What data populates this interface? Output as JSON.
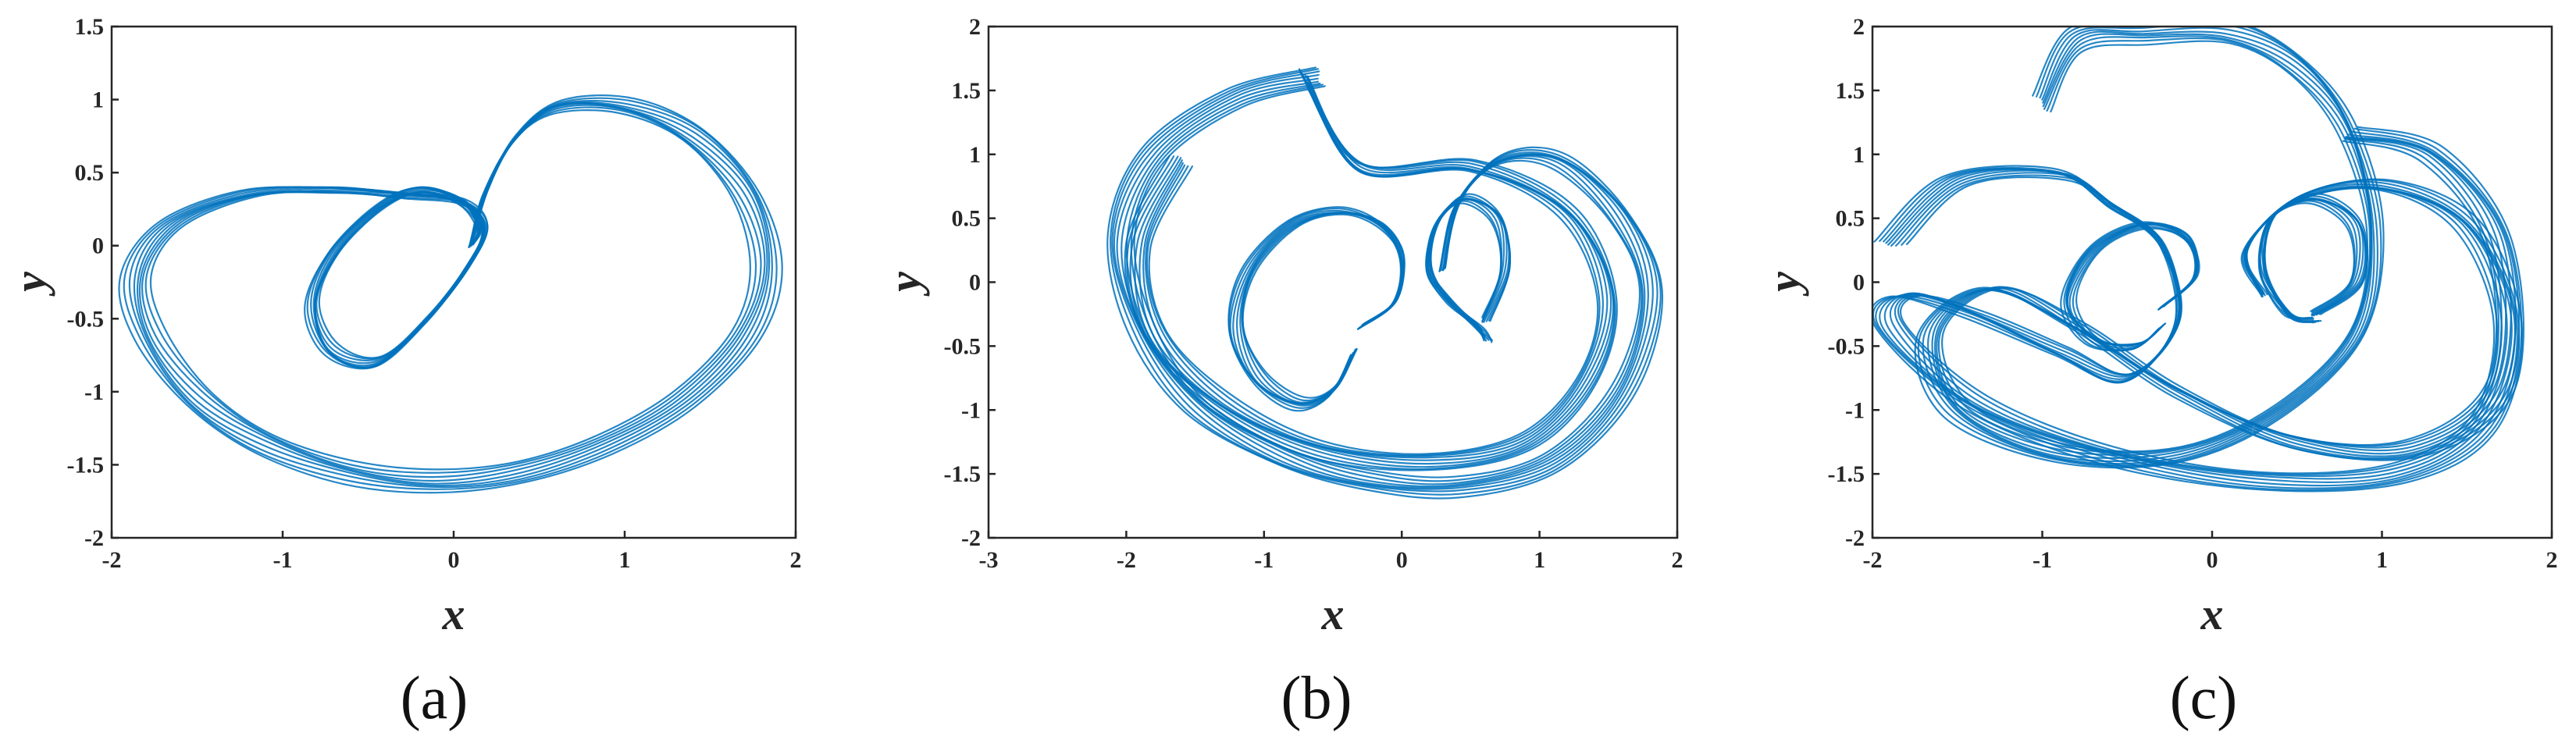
{
  "colors": {
    "trajectory": "#0072BD",
    "axis": "#262626"
  },
  "chart_data": [
    {
      "type": "line",
      "caption": "(a)",
      "xlabel": "x",
      "ylabel": "y",
      "xlim": [
        -2,
        2
      ],
      "ylim": [
        -2,
        1.5
      ],
      "xticks": [
        "-2",
        "-1",
        "0",
        "1",
        "2"
      ],
      "yticks": [
        "-2",
        "-1.5",
        "-1",
        "-0.5",
        "0",
        "0.5",
        "1",
        "1.5"
      ],
      "grid": false,
      "series": [
        {
          "x": [
            0.1,
            0.18,
            0.35,
            0.6,
            1.0,
            1.4,
            1.72,
            1.83,
            1.7,
            1.35,
            0.9,
            0.4,
            -0.1,
            -0.6,
            -1.1,
            -1.5,
            -1.78,
            -1.85,
            -1.65,
            -1.2,
            -0.7,
            -0.3,
            0.05,
            0.18,
            0.08,
            -0.15,
            -0.45,
            -0.72,
            -0.82,
            -0.7,
            -0.45,
            -0.2,
            0.05,
            0.15,
            0.1
          ],
          "y": [
            0.0,
            0.35,
            0.72,
            0.95,
            0.95,
            0.75,
            0.35,
            -0.15,
            -0.62,
            -1.05,
            -1.35,
            -1.55,
            -1.62,
            -1.55,
            -1.35,
            -1.05,
            -0.62,
            -0.2,
            0.15,
            0.35,
            0.38,
            0.35,
            0.3,
            0.12,
            -0.15,
            -0.5,
            -0.8,
            -0.72,
            -0.4,
            -0.05,
            0.25,
            0.38,
            0.3,
            0.12,
            0.0
          ]
        }
      ]
    },
    {
      "type": "line",
      "caption": "(b)",
      "xlabel": "x",
      "ylabel": "y",
      "xlim": [
        -3,
        2
      ],
      "ylim": [
        -2,
        2
      ],
      "xticks": [
        "-3",
        "-2",
        "-1",
        "0",
        "1",
        "2"
      ],
      "yticks": [
        "-2",
        "-1.5",
        "-1",
        "-0.5",
        "0",
        "0.5",
        "1",
        "1.5",
        "2"
      ],
      "grid": false,
      "series": [
        {
          "x": [
            -0.3,
            -0.05,
            0.0,
            -0.15,
            -0.45,
            -0.8,
            -1.1,
            -1.2,
            -1.05,
            -0.75,
            -0.5,
            -0.35
          ],
          "y": [
            -0.35,
            -0.15,
            0.2,
            0.45,
            0.55,
            0.45,
            0.1,
            -0.35,
            -0.75,
            -0.95,
            -0.85,
            -0.55
          ]
        },
        {
          "x": [
            0.6,
            0.75,
            0.7,
            0.45,
            0.25,
            0.2,
            0.35,
            0.55,
            0.62
          ],
          "y": [
            -0.3,
            0.1,
            0.5,
            0.65,
            0.45,
            0.1,
            -0.15,
            -0.35,
            -0.45
          ]
        },
        {
          "x": [
            -0.6,
            -1.2,
            -1.8,
            -2.05,
            -1.9,
            -1.5,
            -0.9,
            -0.3,
            0.4,
            1.1,
            1.6,
            1.8,
            1.6,
            1.15,
            0.7,
            0.4,
            0.3
          ],
          "y": [
            1.6,
            1.45,
            1.0,
            0.35,
            -0.35,
            -0.95,
            -1.35,
            -1.55,
            -1.6,
            -1.4,
            -0.85,
            -0.1,
            0.5,
            0.95,
            0.95,
            0.6,
            0.1
          ]
        },
        {
          "x": [
            -1.6,
            -1.9,
            -1.8,
            -1.3,
            -0.6,
            0.2,
            0.9,
            1.35,
            1.5,
            1.2,
            0.5,
            -0.3,
            -0.7
          ],
          "y": [
            0.95,
            0.3,
            -0.4,
            -0.95,
            -1.3,
            -1.4,
            -1.25,
            -0.75,
            -0.1,
            0.55,
            0.9,
            0.9,
            1.6
          ]
        }
      ]
    },
    {
      "type": "line",
      "caption": "(c)",
      "xlabel": "x",
      "ylabel": "y",
      "xlim": [
        -2,
        2
      ],
      "ylim": [
        -2,
        2
      ],
      "xticks": [
        "-2",
        "-1",
        "0",
        "1",
        "2"
      ],
      "yticks": [
        "-2",
        "-1.5",
        "-1",
        "-0.5",
        "0",
        "0.5",
        "1",
        "1.5",
        "2"
      ],
      "grid": false,
      "series": [
        {
          "x": [
            -0.3,
            -0.1,
            -0.15,
            -0.4,
            -0.7,
            -0.85,
            -0.7,
            -0.45,
            -0.3
          ],
          "y": [
            -0.2,
            0.05,
            0.35,
            0.45,
            0.25,
            -0.15,
            -0.45,
            -0.5,
            -0.35
          ]
        },
        {
          "x": [
            0.6,
            0.85,
            0.85,
            0.6,
            0.35,
            0.3,
            0.45,
            0.6
          ],
          "y": [
            -0.25,
            0.0,
            0.45,
            0.65,
            0.5,
            0.1,
            -0.25,
            -0.3
          ]
        },
        {
          "x": [
            -1.9,
            -1.5,
            -0.9,
            -0.6,
            -0.3,
            -0.2,
            -0.5,
            -0.9,
            -1.4,
            -1.8,
            -1.9,
            -1.4,
            -0.6,
            0.3,
            1.1,
            1.6,
            1.75,
            1.5,
            1.0,
            0.5,
            0.2,
            0.3
          ],
          "y": [
            0.3,
            0.8,
            0.85,
            0.6,
            0.3,
            -0.3,
            -0.75,
            -0.55,
            -0.25,
            -0.1,
            -0.35,
            -0.95,
            -1.35,
            -1.55,
            -1.5,
            -1.1,
            -0.3,
            0.45,
            0.75,
            0.65,
            0.25,
            -0.1
          ]
        },
        {
          "x": [
            -1.0,
            -0.8,
            -0.4,
            0.1,
            0.5,
            0.8,
            0.95,
            0.85,
            0.4,
            -0.2,
            -0.9,
            -1.5,
            -1.65,
            -1.3,
            -0.8,
            -0.2,
            0.5,
            1.2,
            1.7,
            1.7,
            1.3,
            0.8
          ],
          "y": [
            1.4,
            1.9,
            1.95,
            1.95,
            1.7,
            1.2,
            0.4,
            -0.4,
            -1.0,
            -1.35,
            -1.35,
            -1.0,
            -0.4,
            -0.05,
            -0.35,
            -0.85,
            -1.25,
            -1.3,
            -0.8,
            0.3,
            1.0,
            1.15
          ]
        }
      ]
    }
  ]
}
